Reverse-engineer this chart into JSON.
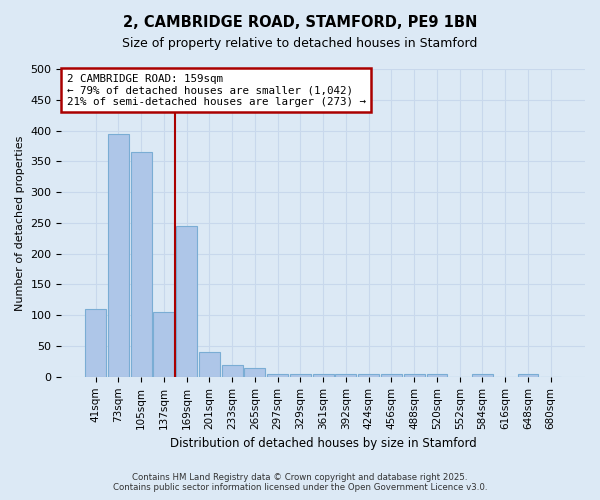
{
  "title_line1": "2, CAMBRIDGE ROAD, STAMFORD, PE9 1BN",
  "title_line2": "Size of property relative to detached houses in Stamford",
  "xlabel": "Distribution of detached houses by size in Stamford",
  "ylabel": "Number of detached properties",
  "footnote_line1": "Contains HM Land Registry data © Crown copyright and database right 2025.",
  "footnote_line2": "Contains public sector information licensed under the Open Government Licence v3.0.",
  "categories": [
    "41sqm",
    "73sqm",
    "105sqm",
    "137sqm",
    "169sqm",
    "201sqm",
    "233sqm",
    "265sqm",
    "297sqm",
    "329sqm",
    "361sqm",
    "392sqm",
    "424sqm",
    "456sqm",
    "488sqm",
    "520sqm",
    "552sqm",
    "584sqm",
    "616sqm",
    "648sqm",
    "680sqm"
  ],
  "values": [
    110,
    395,
    365,
    105,
    245,
    40,
    20,
    15,
    5,
    5,
    5,
    5,
    5,
    5,
    5,
    5,
    0,
    5,
    0,
    5,
    0
  ],
  "bar_color": "#aec6e8",
  "bar_edge_color": "#7aadd4",
  "vline_color": "#aa0000",
  "vline_x": 3.5,
  "annotation_text_line1": "2 CAMBRIDGE ROAD: 159sqm",
  "annotation_text_line2": "← 79% of detached houses are smaller (1,042)",
  "annotation_text_line3": "21% of semi-detached houses are larger (273) →",
  "annotation_box_facecolor": "#ffffff",
  "annotation_box_edgecolor": "#aa0000",
  "ylim": [
    0,
    500
  ],
  "ytick_max": 500,
  "ytick_step": 50,
  "background_color": "#dce9f5",
  "plot_bg_color": "#dce9f5",
  "grid_color": "#c8d8ec",
  "font_family": "DejaVu Sans"
}
